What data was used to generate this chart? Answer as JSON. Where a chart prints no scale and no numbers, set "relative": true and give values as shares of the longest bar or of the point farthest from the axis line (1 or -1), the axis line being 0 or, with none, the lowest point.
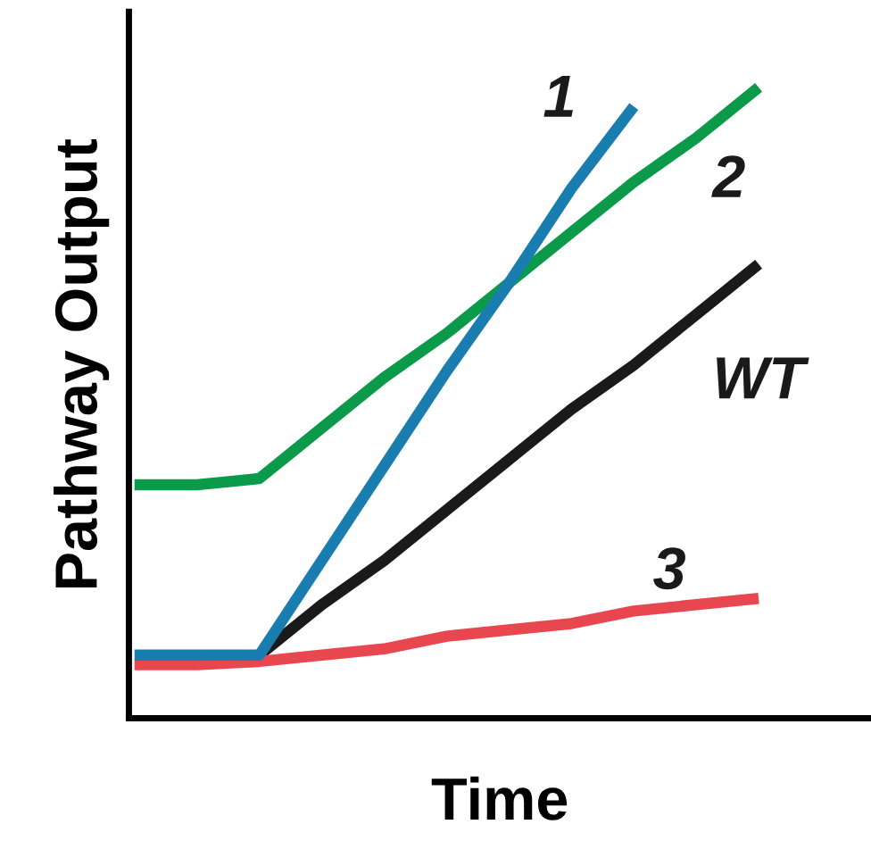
{
  "chart_data": {
    "type": "line",
    "relative": true,
    "xlabel": "Time",
    "ylabel": "Pathway Output",
    "categories": [
      null,
      null,
      null,
      null,
      null,
      null,
      null,
      null,
      null,
      null,
      null
    ],
    "series": [
      {
        "name": "1",
        "color": "#1a7db0",
        "values": [
          0.1,
          0.1,
          0.1,
          0.25,
          0.4,
          0.55,
          0.69,
          0.84,
          0.97,
          null,
          null
        ]
      },
      {
        "name": "2",
        "color": "#0a9a4a",
        "values": [
          0.37,
          0.37,
          0.38,
          0.46,
          0.54,
          0.61,
          0.69,
          0.77,
          0.85,
          0.92,
          1.0
        ]
      },
      {
        "name": "WT",
        "color": "#1a1a1a",
        "values": [
          null,
          null,
          0.1,
          0.18,
          0.25,
          0.33,
          0.41,
          0.49,
          0.56,
          0.64,
          0.72
        ]
      },
      {
        "name": "3",
        "color": "#e8474f",
        "values": [
          0.085,
          0.085,
          0.09,
          0.1,
          0.11,
          0.13,
          0.14,
          0.15,
          0.17,
          0.18,
          0.19
        ]
      }
    ],
    "grid": false,
    "legend": false,
    "marker": "none",
    "line_style": "solid"
  }
}
